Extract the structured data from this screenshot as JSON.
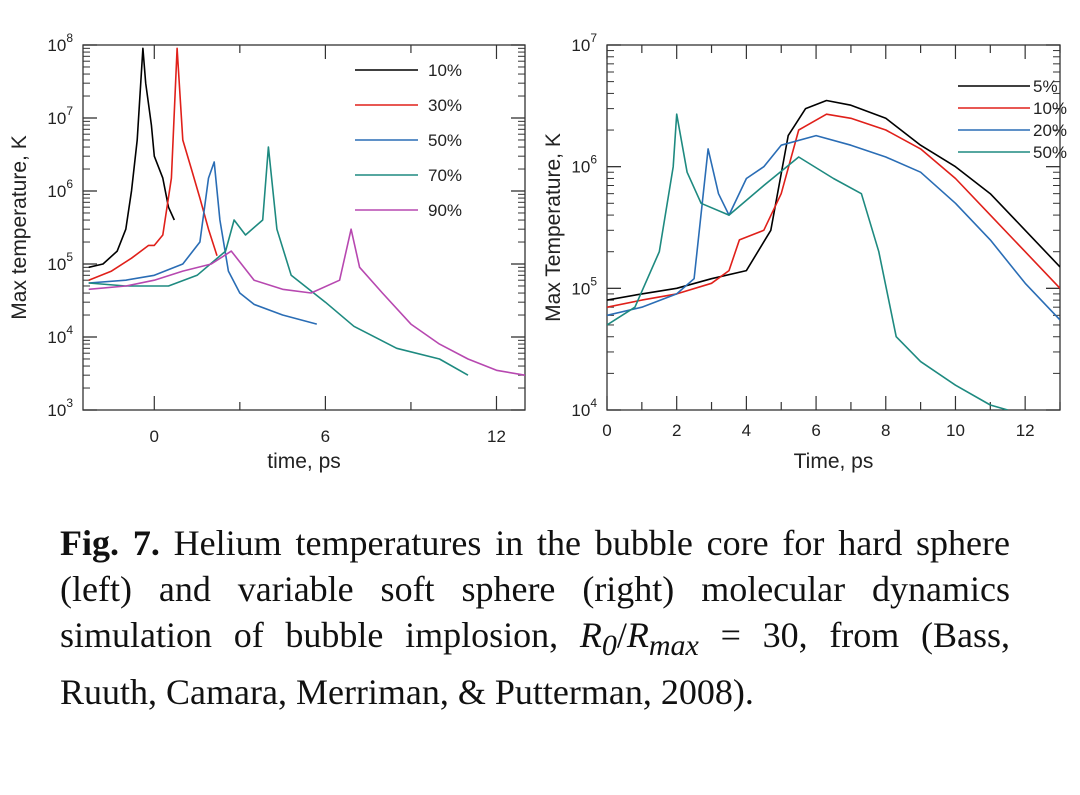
{
  "chart_data": [
    {
      "type": "line",
      "xlabel": "time, ps",
      "ylabel": "Max temperature, K",
      "xlim": [
        -2.5,
        13
      ],
      "ylim": [
        1000,
        100000000
      ],
      "yscale": "log",
      "x_ticks": [
        0,
        6,
        12
      ],
      "y_ticks": [
        1000,
        10000,
        100000,
        1000000,
        10000000,
        100000000
      ],
      "y_tick_exponents": [
        "3",
        "4",
        "5",
        "6",
        "7",
        "8"
      ],
      "y_tick_base": "10",
      "legend_position": "top-right",
      "series": [
        {
          "name": "10%",
          "color": "#000000",
          "x": [
            -2.3,
            -1.8,
            -1.3,
            -1.0,
            -0.8,
            -0.6,
            -0.4,
            -0.3,
            -0.1,
            0.0,
            0.3,
            0.5,
            0.7
          ],
          "y": [
            90000,
            100000,
            150000,
            300000,
            1000000,
            5000000,
            90000000,
            30000000,
            8000000,
            3000000,
            1500000,
            600000,
            400000
          ]
        },
        {
          "name": "30%",
          "color": "#e0201a",
          "x": [
            -2.3,
            -1.5,
            -0.8,
            -0.2,
            0.0,
            0.3,
            0.6,
            0.8,
            1.0,
            1.3,
            1.6,
            1.9,
            2.2
          ],
          "y": [
            60000,
            80000,
            120000,
            180000,
            180000,
            250000,
            1500000,
            90000000,
            5000000,
            2000000,
            800000,
            300000,
            130000
          ]
        },
        {
          "name": "50%",
          "color": "#2a6db5",
          "x": [
            -2.3,
            -1.0,
            0.0,
            1.0,
            1.6,
            1.9,
            2.1,
            2.3,
            2.6,
            3.0,
            3.5,
            4.5,
            5.7
          ],
          "y": [
            55000,
            60000,
            70000,
            100000,
            200000,
            1500000,
            2500000,
            400000,
            80000,
            40000,
            28000,
            20000,
            15000
          ]
        },
        {
          "name": "70%",
          "color": "#1e8a80",
          "x": [
            -2.3,
            -1.0,
            0.5,
            1.5,
            2.5,
            2.8,
            3.2,
            3.8,
            4.0,
            4.3,
            4.8,
            6.0,
            7.0,
            8.5,
            10.0,
            11.0
          ],
          "y": [
            55000,
            50000,
            50000,
            70000,
            150000,
            400000,
            250000,
            400000,
            4000000,
            300000,
            70000,
            30000,
            14000,
            7000,
            5000,
            3000
          ]
        },
        {
          "name": "90%",
          "color": "#b748b0",
          "x": [
            -2.3,
            -1.0,
            0.0,
            1.0,
            2.0,
            2.7,
            3.5,
            4.5,
            5.5,
            6.5,
            6.9,
            7.2,
            8.0,
            9.0,
            10.0,
            11.0,
            12.0,
            13.0
          ],
          "y": [
            45000,
            50000,
            60000,
            80000,
            100000,
            150000,
            60000,
            45000,
            40000,
            60000,
            300000,
            90000,
            40000,
            15000,
            8000,
            5000,
            3500,
            3000
          ]
        }
      ]
    },
    {
      "type": "line",
      "xlabel": "Time, ps",
      "ylabel": "Max Temperature, K",
      "xlim": [
        0,
        13
      ],
      "ylim": [
        10000,
        10000000
      ],
      "yscale": "log",
      "x_ticks": [
        0,
        2,
        4,
        6,
        8,
        10,
        12
      ],
      "y_ticks": [
        10000,
        100000,
        1000000,
        10000000
      ],
      "y_tick_exponents": [
        "4",
        "5",
        "6",
        "7"
      ],
      "y_tick_base": "10",
      "legend_position": "top-right",
      "series": [
        {
          "name": "5%",
          "color": "#000000",
          "x": [
            0,
            1,
            2,
            3,
            4,
            4.7,
            5.2,
            5.7,
            6.3,
            7,
            8,
            9,
            10,
            11,
            12,
            13
          ],
          "y": [
            80000,
            90000,
            100000,
            120000,
            140000,
            300000,
            1800000,
            3000000,
            3500000,
            3200000,
            2500000,
            1500000,
            1000000,
            600000,
            300000,
            150000
          ]
        },
        {
          "name": "10%",
          "color": "#e0201a",
          "x": [
            0,
            1,
            2,
            3,
            3.5,
            3.8,
            4.5,
            5,
            5.5,
            6.3,
            7,
            8,
            9,
            10,
            11,
            12,
            13
          ],
          "y": [
            70000,
            80000,
            90000,
            110000,
            140000,
            250000,
            300000,
            600000,
            2000000,
            2700000,
            2500000,
            2000000,
            1400000,
            800000,
            400000,
            200000,
            100000
          ]
        },
        {
          "name": "20%",
          "color": "#2a6db5",
          "x": [
            0,
            1,
            2,
            2.5,
            2.9,
            3.2,
            3.5,
            4.0,
            4.5,
            5,
            6,
            7,
            8,
            9,
            10,
            11,
            12,
            13
          ],
          "y": [
            60000,
            70000,
            90000,
            120000,
            1400000,
            600000,
            400000,
            800000,
            1000000,
            1500000,
            1800000,
            1500000,
            1200000,
            900000,
            500000,
            250000,
            110000,
            55000
          ]
        },
        {
          "name": "50%",
          "color": "#1e8a80",
          "x": [
            0,
            0.8,
            1.5,
            1.9,
            2.0,
            2.3,
            2.7,
            3.5,
            4.5,
            5.5,
            6.5,
            7.3,
            7.8,
            8.3,
            9,
            10,
            11,
            11.5
          ],
          "y": [
            50000,
            70000,
            200000,
            1000000,
            2700000,
            900000,
            500000,
            400000,
            700000,
            1200000,
            800000,
            600000,
            200000,
            40000,
            25000,
            16000,
            11000,
            10000
          ]
        }
      ]
    }
  ],
  "caption": {
    "fig_label": "Fig. 7.",
    "text_before": " Helium temperatures in the bubble core for hard sphere (left) and variable soft sphere (right) molecular dynamics simulation of bubble implosion, ",
    "r0": "R",
    "r0_sub": "0",
    "slash": "/",
    "rmax": "R",
    "rmax_sub": "max",
    "text_after": " = 30, from (Bass, Ruuth, Camara, Merriman, & Putterman, 2008)."
  }
}
